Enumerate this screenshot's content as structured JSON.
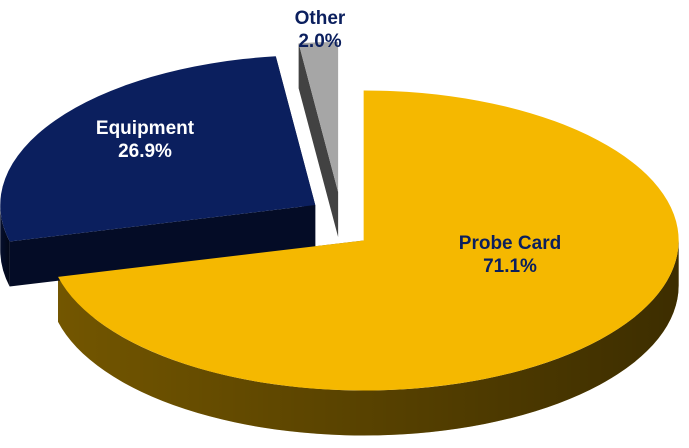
{
  "chart_data": {
    "type": "pie",
    "categories": [
      "Probe Card",
      "Equipment",
      "Other"
    ],
    "values": [
      71.1,
      26.9,
      2.0
    ],
    "value_labels": [
      "71.1%",
      "26.9%",
      "2.0%"
    ],
    "colors": [
      "#f5b800",
      "#0b1f5e",
      "#a6a6a6"
    ]
  }
}
